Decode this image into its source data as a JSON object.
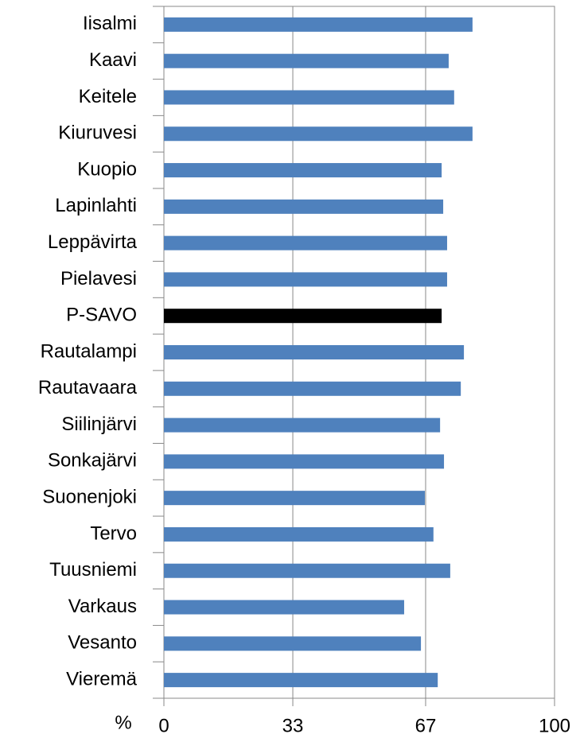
{
  "chart_data": {
    "type": "barh",
    "xlabel": "%",
    "categories": [
      "Iisalmi",
      "Kaavi",
      "Keitele",
      "Kiuruvesi",
      "Kuopio",
      "Lapinlahti",
      "Leppävirta",
      "Pielavesi",
      "P-SAVO",
      "Rautalampi",
      "Rautavaara",
      "Siilinjärvi",
      "Sonkajärvi",
      "Suonenjoki",
      "Tervo",
      "Tuusniemi",
      "Varkaus",
      "Vesanto",
      "Vieremä"
    ],
    "values": [
      79.0,
      72.9,
      74.3,
      79.0,
      71.1,
      71.5,
      72.5,
      72.5,
      71.1,
      76.8,
      76.0,
      70.7,
      71.7,
      66.8,
      69.0,
      73.3,
      61.5,
      65.8,
      70.1
    ],
    "colors": [
      "#4f81bd",
      "#4f81bd",
      "#4f81bd",
      "#4f81bd",
      "#4f81bd",
      "#4f81bd",
      "#4f81bd",
      "#4f81bd",
      "#000000",
      "#4f81bd",
      "#4f81bd",
      "#4f81bd",
      "#4f81bd",
      "#4f81bd",
      "#4f81bd",
      "#4f81bd",
      "#4f81bd",
      "#4f81bd",
      "#4f81bd"
    ],
    "xlim": [
      0,
      100
    ],
    "xticks": [
      0,
      33,
      67,
      100
    ],
    "grid": true
  }
}
